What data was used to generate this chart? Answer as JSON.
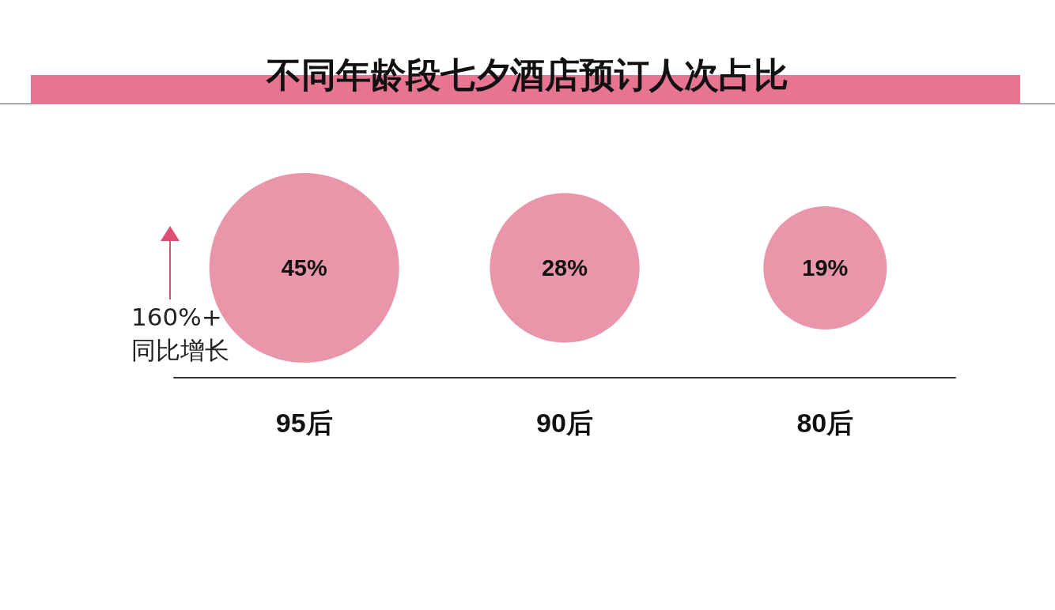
{
  "chart_data": {
    "type": "other",
    "title": "不同年龄段七夕酒店预订人次占比",
    "categories": [
      "95后",
      "90后",
      "80后"
    ],
    "values": [
      45,
      28,
      19
    ],
    "value_labels": [
      "45%",
      "28%",
      "19%"
    ],
    "color": "#e995aa",
    "annotations": [
      "160%+\n同比增长"
    ]
  }
}
